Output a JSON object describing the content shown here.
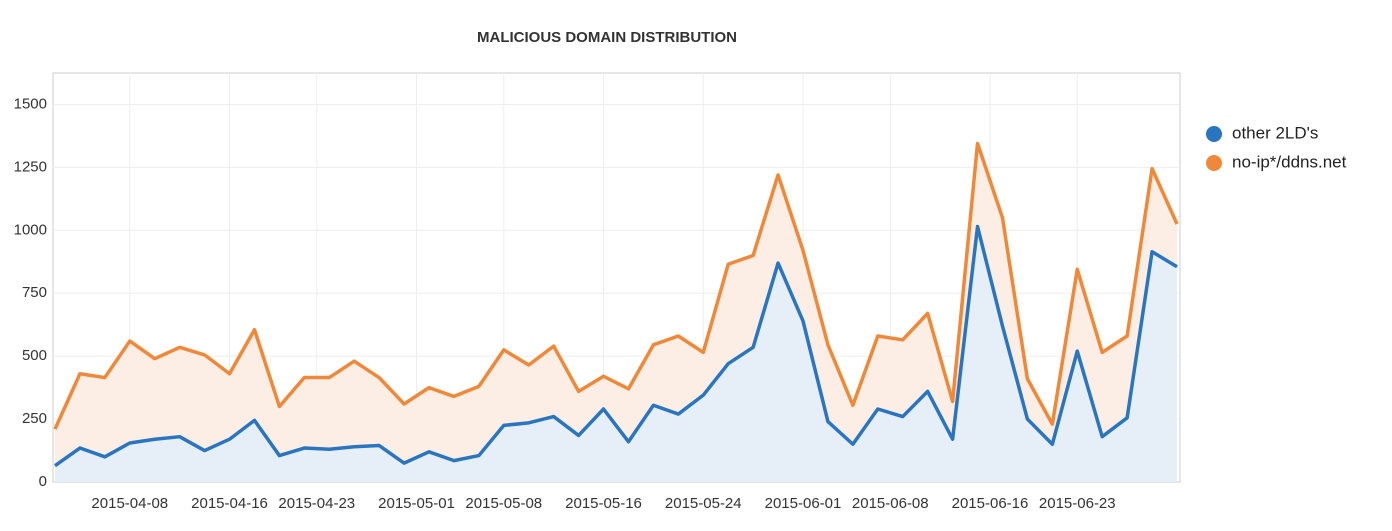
{
  "chart_data": {
    "type": "stacked-area",
    "title": "MALICIOUS DOMAIN DISTRIBUTION",
    "x": [
      "2015-04-02",
      "2015-04-04",
      "2015-04-06",
      "2015-04-08",
      "2015-04-10",
      "2015-04-12",
      "2015-04-14",
      "2015-04-16",
      "2015-04-18",
      "2015-04-20",
      "2015-04-22",
      "2015-04-24",
      "2015-04-26",
      "2015-04-28",
      "2015-04-30",
      "2015-05-02",
      "2015-05-04",
      "2015-05-06",
      "2015-05-08",
      "2015-05-10",
      "2015-05-12",
      "2015-05-14",
      "2015-05-16",
      "2015-05-18",
      "2015-05-20",
      "2015-05-22",
      "2015-05-24",
      "2015-05-26",
      "2015-05-28",
      "2015-05-30",
      "2015-06-01",
      "2015-06-03",
      "2015-06-05",
      "2015-06-07",
      "2015-06-09",
      "2015-06-11",
      "2015-06-13",
      "2015-06-15",
      "2015-06-17",
      "2015-06-19",
      "2015-06-21",
      "2015-06-23",
      "2015-06-25",
      "2015-06-27",
      "2015-06-29",
      "2015-07-01"
    ],
    "series": [
      {
        "name": "other 2LD's",
        "color": "#2a75c0",
        "fill": "#e6eef8",
        "values": [
          65,
          135,
          100,
          155,
          170,
          180,
          125,
          170,
          245,
          105,
          135,
          130,
          140,
          145,
          75,
          120,
          85,
          105,
          225,
          235,
          260,
          185,
          290,
          160,
          305,
          270,
          345,
          470,
          535,
          870,
          640,
          240,
          150,
          290,
          260,
          360,
          170,
          1015,
          620,
          250,
          150,
          520,
          180,
          255,
          915,
          855
        ]
      },
      {
        "name": "no-ip*/ddns.net",
        "color": "#f0883a",
        "fill": "#fdeee5",
        "values": [
          145,
          295,
          315,
          405,
          320,
          355,
          380,
          260,
          360,
          195,
          280,
          285,
          340,
          270,
          235,
          255,
          255,
          275,
          300,
          230,
          280,
          175,
          130,
          210,
          240,
          310,
          170,
          395,
          365,
          350,
          280,
          305,
          155,
          290,
          305,
          310,
          150,
          330,
          430,
          160,
          80,
          325,
          335,
          325,
          330,
          170
        ]
      }
    ],
    "xlim": [
      "2015-04-02",
      "2015-07-01"
    ],
    "xticks": [
      "2015-04-08",
      "2015-04-16",
      "2015-04-23",
      "2015-05-01",
      "2015-05-08",
      "2015-05-16",
      "2015-05-24",
      "2015-06-01",
      "2015-06-08",
      "2015-06-16",
      "2015-06-23"
    ],
    "ylim": [
      0,
      1625
    ],
    "yticks": [
      0,
      250,
      500,
      750,
      1000,
      1250,
      1500
    ],
    "grid": true,
    "legend": "right"
  }
}
